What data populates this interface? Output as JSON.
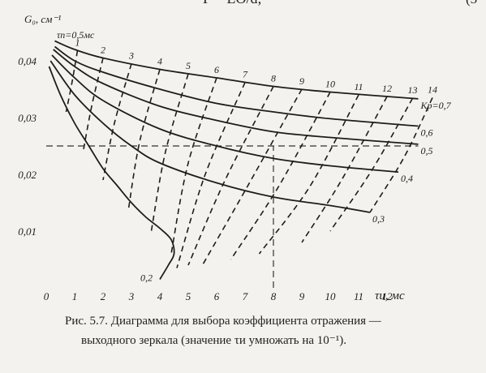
{
  "header": {
    "formula": "Γ = LΘ/d;",
    "number": "(5"
  },
  "chart_data": {
    "type": "nomogram",
    "y_label": "G₀, см⁻¹",
    "x_label": "τи, мс",
    "note": "τп=0,5мс",
    "xlim": [
      0,
      14.5
    ],
    "ylim": [
      0,
      0.045
    ],
    "xticks": [
      0,
      1,
      2,
      3,
      4,
      5,
      6,
      7,
      8,
      9,
      10,
      11,
      12
    ],
    "yticks": [
      {
        "value": 0.01,
        "label": "0,01"
      },
      {
        "value": 0.02,
        "label": "0,02"
      },
      {
        "value": 0.03,
        "label": "0,03"
      },
      {
        "value": 0.04,
        "label": "0,04"
      }
    ],
    "series": [
      {
        "name": "Kр=0,7",
        "style": "solid",
        "x": [
          0.3,
          1,
          2,
          4,
          6,
          8,
          10,
          13.1
        ],
        "values": [
          0.0435,
          0.042,
          0.0405,
          0.0385,
          0.037,
          0.0355,
          0.0345,
          0.0333
        ]
      },
      {
        "name": "0,6",
        "style": "solid",
        "x": [
          0.3,
          1,
          2,
          4,
          6,
          8,
          10,
          13.1
        ],
        "values": [
          0.0425,
          0.04,
          0.038,
          0.035,
          0.0325,
          0.031,
          0.0298,
          0.0285
        ]
      },
      {
        "name": "0,5",
        "style": "solid",
        "x": [
          0.25,
          1,
          2,
          4,
          6,
          8,
          10,
          13.1
        ],
        "values": [
          0.042,
          0.039,
          0.036,
          0.032,
          0.0295,
          0.0275,
          0.0265,
          0.0253
        ]
      },
      {
        "name": "0,4",
        "style": "solid",
        "x": [
          0.2,
          1,
          2,
          4,
          6,
          8,
          10,
          12.4
        ],
        "values": [
          0.041,
          0.037,
          0.033,
          0.028,
          0.025,
          0.0228,
          0.0215,
          0.0204
        ]
      },
      {
        "name": "0,3",
        "style": "solid",
        "x": [
          0.15,
          1,
          2,
          3,
          4,
          6,
          8,
          10,
          11.4
        ],
        "values": [
          0.04,
          0.034,
          0.029,
          0.025,
          0.022,
          0.0185,
          0.016,
          0.0145,
          0.0133
        ]
      },
      {
        "name": "0,2",
        "style": "solid",
        "x": [
          0.1,
          0.5,
          1,
          1.5,
          2,
          2.5,
          3,
          3.5,
          4,
          4.4,
          4.5,
          4.3,
          4
        ],
        "values": [
          0.039,
          0.034,
          0.029,
          0.025,
          0.021,
          0.018,
          0.015,
          0.0125,
          0.0105,
          0.0085,
          0.006,
          0.004,
          0.0015
        ]
      },
      {
        "name": "1",
        "style": "dashed",
        "x": [
          1.1,
          0.9,
          0.7
        ],
        "values": [
          0.0418,
          0.036,
          0.031
        ]
      },
      {
        "name": "2",
        "style": "dashed",
        "x": [
          2,
          1.6,
          1.3
        ],
        "values": [
          0.0405,
          0.032,
          0.024
        ]
      },
      {
        "name": "3",
        "style": "dashed",
        "x": [
          3,
          2.4,
          2
        ],
        "values": [
          0.0395,
          0.029,
          0.019
        ]
      },
      {
        "name": "4",
        "style": "dashed",
        "x": [
          4,
          3.3,
          2.9
        ],
        "values": [
          0.0385,
          0.026,
          0.014
        ]
      },
      {
        "name": "5",
        "style": "dashed",
        "x": [
          5,
          4.2,
          3.7
        ],
        "values": [
          0.0377,
          0.024,
          0.01
        ]
      },
      {
        "name": "6",
        "style": "dashed",
        "x": [
          6,
          5,
          4.4
        ],
        "values": [
          0.037,
          0.022,
          0.006
        ]
      },
      {
        "name": "7",
        "style": "dashed",
        "x": [
          7,
          5.6,
          4.6
        ],
        "values": [
          0.0362,
          0.02,
          0.0035
        ]
      },
      {
        "name": "8",
        "style": "dashed",
        "x": [
          8,
          6.3,
          5
        ],
        "values": [
          0.0355,
          0.019,
          0.004
        ]
      },
      {
        "name": "9",
        "style": "dashed",
        "x": [
          9,
          7.1,
          5.5
        ],
        "values": [
          0.035,
          0.018,
          0.004
        ]
      },
      {
        "name": "10",
        "style": "dashed",
        "x": [
          10,
          8.2,
          6.5
        ],
        "values": [
          0.0345,
          0.018,
          0.005
        ]
      },
      {
        "name": "11",
        "style": "dashed",
        "x": [
          11,
          9.3,
          7.5
        ],
        "values": [
          0.034,
          0.018,
          0.006
        ]
      },
      {
        "name": "12",
        "style": "dashed",
        "x": [
          12,
          10.4,
          9
        ],
        "values": [
          0.0337,
          0.019,
          0.008
        ]
      },
      {
        "name": "13",
        "style": "dashed",
        "x": [
          12.9,
          11.5,
          10
        ],
        "values": [
          0.0334,
          0.021,
          0.01
        ]
      },
      {
        "name": "14",
        "style": "dashed",
        "x": [
          13.6,
          12.6,
          11.4
        ],
        "values": [
          0.0335,
          0.023,
          0.0133
        ]
      }
    ],
    "guides": [
      {
        "x": [
          0,
          13.1
        ],
        "values": [
          0.025,
          0.025
        ]
      },
      {
        "x": [
          8,
          8
        ],
        "values": [
          0,
          0.025
        ]
      }
    ]
  },
  "caption": [
    "Рис. 5.7. Диаграмма для выбора  коэффициента отражения —",
    "выходного зеркала (значение τи умножать на 10⁻¹)."
  ]
}
